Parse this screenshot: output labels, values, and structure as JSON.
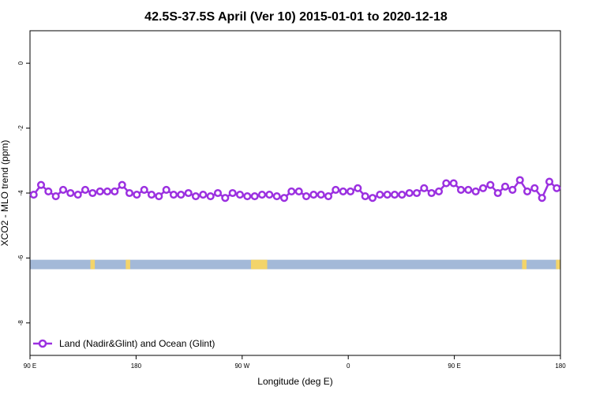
{
  "chart_data": {
    "type": "line",
    "title": "42.5S-37.5S April (Ver 10)   2015-01-01 to 2020-12-18",
    "xlabel": "Longitude (deg E)",
    "ylabel": "XCO2 - MLO trend (ppm)",
    "xlim": [
      90,
      450
    ],
    "ylim": [
      -9,
      1
    ],
    "x_ticks": [
      {
        "value": 90,
        "label": "90 E"
      },
      {
        "value": 162,
        "label": "180"
      },
      {
        "value": 234,
        "label": "90 W"
      },
      {
        "value": 306,
        "label": "0"
      },
      {
        "value": 378,
        "label": "90 E"
      },
      {
        "value": 450,
        "label": "180"
      }
    ],
    "y_ticks": [
      0,
      -2,
      -4,
      -6,
      -8
    ],
    "grid": false,
    "legend_position": "bottom-left",
    "series": [
      {
        "name": "Land (Nadir&Glint) and Ocean (Glint)",
        "color": "#9b30e0",
        "x": [
          92.5,
          97.5,
          102.5,
          107.5,
          112.5,
          117.5,
          122.5,
          127.5,
          132.5,
          137.5,
          142.5,
          147.5,
          152.5,
          157.5,
          162.5,
          167.5,
          172.5,
          177.5,
          182.5,
          187.5,
          192.5,
          197.5,
          202.5,
          207.5,
          212.5,
          217.5,
          222.5,
          227.5,
          232.5,
          237.5,
          242.5,
          247.5,
          252.5,
          257.5,
          262.5,
          267.5,
          272.5,
          277.5,
          282.5,
          287.5,
          292.5,
          297.5,
          302.5,
          307.5,
          312.5,
          317.5,
          322.5,
          327.5,
          332.5,
          337.5,
          342.5,
          347.5,
          352.5,
          357.5,
          362.5,
          367.5,
          372.5,
          377.5,
          382.5,
          387.5,
          392.5,
          397.5,
          402.5,
          407.5,
          412.5,
          417.5,
          422.5,
          427.5,
          432.5,
          437.5,
          442.5,
          447.5
        ],
        "values": [
          -4.05,
          -3.75,
          -3.95,
          -4.1,
          -3.9,
          -4.0,
          -4.05,
          -3.9,
          -4.0,
          -3.95,
          -3.95,
          -3.95,
          -3.75,
          -4.0,
          -4.05,
          -3.9,
          -4.05,
          -4.1,
          -3.9,
          -4.05,
          -4.05,
          -4.0,
          -4.1,
          -4.05,
          -4.1,
          -4.0,
          -4.15,
          -4.0,
          -4.05,
          -4.1,
          -4.1,
          -4.05,
          -4.05,
          -4.1,
          -4.15,
          -3.95,
          -3.95,
          -4.1,
          -4.05,
          -4.05,
          -4.1,
          -3.9,
          -3.95,
          -3.95,
          -3.85,
          -4.1,
          -4.15,
          -4.05,
          -4.05,
          -4.05,
          -4.05,
          -4.0,
          -4.0,
          -3.85,
          -4.0,
          -3.95,
          -3.7,
          -3.7,
          -3.9,
          -3.9,
          -3.95,
          -3.85,
          -3.75,
          -4.0,
          -3.8,
          -3.9,
          -3.6,
          -3.95,
          -3.85,
          -4.15,
          -3.65,
          -3.85
        ]
      }
    ],
    "land_ocean_strip": {
      "y": -6.2,
      "ocean_color": "#a3b9d8",
      "land_color": "#f3d46a",
      "land_ranges": [
        [
          131,
          134
        ],
        [
          155,
          158
        ],
        [
          240,
          251
        ],
        [
          424,
          427
        ],
        [
          447,
          450
        ]
      ]
    }
  }
}
